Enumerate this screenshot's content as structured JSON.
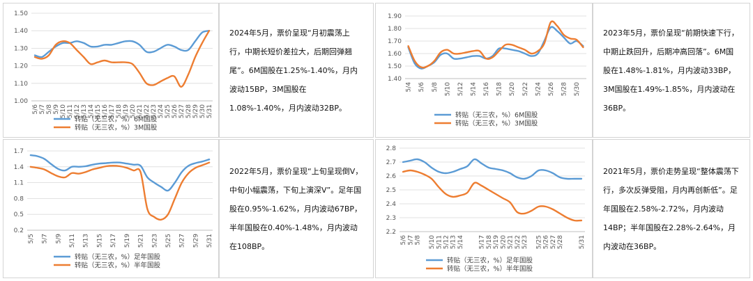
{
  "colors": {
    "blue": "#5B9BD5",
    "orange": "#ED7D31",
    "grid": "#d9d9d9"
  },
  "texts": [
    "2024年5月，票价呈现“月初震荡上行，中期长短价差拉大，后期回弹翘尾”。6M国股在1.25%-1.40%，月内波动15BP，3M国股在1.08%-1.40%，月内波动32BP。",
    "2023年5月，票价呈现“前期快速下行，中期止跌回升，后期冲高回落”。6M国股在1.48%-1.81%，月内波动33BP，3M国股在1.49%-1.85%，月内波动在36BP。",
    "2022年5月，票价呈现“上旬呈现倒V，中旬小幅震荡，下旬上演深V”。足年国股在0.95%-1.62%，月内波动67BP，半年国股在0.40%-1.48%，月内波动在108BP。",
    "2021年5月，票价走势呈现“整体震荡下行，多次反弹受阻，月内再创新低”。足年国股在2.58%-2.72%，月内波动14BP；半年国股在2.28%-2.64%，月内波动在36BP。"
  ],
  "chart_data": [
    {
      "type": "line",
      "x": [
        "5/6",
        "5/7",
        "5/8",
        "5/9",
        "5/10",
        "5/11",
        "5/12",
        "5/13",
        "5/14",
        "5/15",
        "5/16",
        "5/17",
        "5/18",
        "5/19",
        "5/20",
        "5/21",
        "5/22",
        "5/23",
        "5/24",
        "5/25",
        "5/26",
        "5/27",
        "5/28",
        "5/29",
        "5/30",
        "5/31"
      ],
      "xticks": [
        "5/6",
        "5/7",
        "5/8",
        "5/9",
        "5/10",
        "5/11",
        "5/12",
        "5/13",
        "5/14",
        "5/15",
        "5/16",
        "5/17",
        "5/18",
        "5/19",
        "5/20",
        "5/21",
        "5/22",
        "5/23",
        "5/24",
        "5/25",
        "5/26",
        "5/27",
        "5/28",
        "5/29",
        "5/30",
        "5/31"
      ],
      "ylim": [
        1.0,
        1.5
      ],
      "yticks": [
        "1.00",
        "1.10",
        "1.20",
        "1.30",
        "1.40",
        "1.50"
      ],
      "series": [
        {
          "name": "转贴（无三农，%）6M国股",
          "values": [
            1.26,
            1.25,
            1.28,
            1.31,
            1.33,
            1.33,
            1.34,
            1.33,
            1.31,
            1.31,
            1.32,
            1.32,
            1.33,
            1.34,
            1.34,
            1.32,
            1.28,
            1.28,
            1.3,
            1.32,
            1.31,
            1.29,
            1.29,
            1.34,
            1.39,
            1.4
          ]
        },
        {
          "name": "转贴（无三农，%）3M国股",
          "values": [
            1.25,
            1.24,
            1.26,
            1.32,
            1.34,
            1.33,
            1.29,
            1.25,
            1.21,
            1.22,
            1.23,
            1.22,
            1.22,
            1.22,
            1.21,
            1.16,
            1.1,
            1.09,
            1.11,
            1.13,
            1.14,
            1.08,
            1.15,
            1.25,
            1.33,
            1.4
          ]
        }
      ]
    },
    {
      "type": "line",
      "x": [
        "5/4",
        "5/5",
        "5/6",
        "5/7",
        "5/8",
        "5/9",
        "5/10",
        "5/11",
        "5/12",
        "5/13",
        "5/14",
        "5/15",
        "5/16",
        "5/17",
        "5/18",
        "5/19",
        "5/20",
        "5/21",
        "5/22",
        "5/23",
        "5/24",
        "5/25",
        "5/26",
        "5/27",
        "5/28",
        "5/29",
        "5/30",
        "5/31"
      ],
      "xticks": [
        "5/4",
        "5/6",
        "5/8",
        "5/10",
        "5/12",
        "5/14",
        "5/16",
        "5/18",
        "5/20",
        "5/22",
        "5/24",
        "5/26",
        "5/28",
        "5/30"
      ],
      "ylim": [
        1.4,
        1.9
      ],
      "yticks": [
        "1.40",
        "1.50",
        "1.60",
        "1.70",
        "1.80",
        "1.90"
      ],
      "series": [
        {
          "name": "转贴（无三农，%）6M国股",
          "values": [
            1.65,
            1.52,
            1.48,
            1.5,
            1.53,
            1.59,
            1.6,
            1.56,
            1.56,
            1.57,
            1.58,
            1.58,
            1.56,
            1.58,
            1.64,
            1.64,
            1.63,
            1.62,
            1.6,
            1.58,
            1.6,
            1.7,
            1.81,
            1.78,
            1.73,
            1.68,
            1.7,
            1.66
          ]
        },
        {
          "name": "转贴（无三农，%）3M国股",
          "values": [
            1.66,
            1.54,
            1.49,
            1.5,
            1.54,
            1.61,
            1.63,
            1.6,
            1.6,
            1.61,
            1.62,
            1.62,
            1.56,
            1.57,
            1.62,
            1.67,
            1.67,
            1.65,
            1.63,
            1.6,
            1.62,
            1.68,
            1.85,
            1.82,
            1.75,
            1.72,
            1.71,
            1.65
          ]
        }
      ]
    },
    {
      "type": "line",
      "x": [
        "5/5",
        "5/6",
        "5/7",
        "5/8",
        "5/9",
        "5/10",
        "5/11",
        "5/12",
        "5/13",
        "5/14",
        "5/15",
        "5/16",
        "5/17",
        "5/18",
        "5/19",
        "5/20",
        "5/21",
        "5/22",
        "5/23",
        "5/24",
        "5/25",
        "5/26",
        "5/27",
        "5/28",
        "5/29",
        "5/30",
        "5/31"
      ],
      "xticks": [
        "5/5",
        "5/7",
        "5/9",
        "5/11",
        "5/13",
        "5/15",
        "5/17",
        "5/19",
        "5/21",
        "5/23",
        "5/25",
        "5/27",
        "5/29",
        "5/31"
      ],
      "ylim": [
        0.2,
        1.7
      ],
      "yticks": [
        "0.2",
        "0.5",
        "0.8",
        "1.1",
        "1.4",
        "1.7"
      ],
      "series": [
        {
          "name": "转贴（无三农，%）足年国股",
          "values": [
            1.62,
            1.6,
            1.55,
            1.45,
            1.36,
            1.33,
            1.4,
            1.4,
            1.41,
            1.44,
            1.46,
            1.47,
            1.48,
            1.48,
            1.46,
            1.44,
            1.42,
            1.2,
            1.1,
            1.02,
            0.95,
            1.1,
            1.3,
            1.42,
            1.47,
            1.5,
            1.54
          ]
        },
        {
          "name": "转贴（无三农，%）半年国股",
          "values": [
            1.4,
            1.38,
            1.35,
            1.28,
            1.22,
            1.2,
            1.28,
            1.27,
            1.3,
            1.35,
            1.38,
            1.41,
            1.42,
            1.41,
            1.38,
            1.33,
            1.3,
            0.6,
            0.45,
            0.4,
            0.5,
            0.8,
            1.1,
            1.28,
            1.38,
            1.43,
            1.48
          ]
        }
      ]
    },
    {
      "type": "line",
      "x": [
        "5/6",
        "5/7",
        "5/8",
        "5/9",
        "5/10",
        "5/11",
        "5/12",
        "5/13",
        "5/14",
        "5/15",
        "5/16",
        "5/17",
        "5/18",
        "5/19",
        "5/20",
        "5/21",
        "5/22",
        "5/23",
        "5/24",
        "5/25",
        "5/26",
        "5/27",
        "5/28",
        "5/29",
        "5/30",
        "5/31"
      ],
      "xticks": [
        "5/6",
        "5/7",
        "5/8",
        "5/10",
        "5/11",
        "5/12",
        "5/13",
        "5/14",
        "5/17",
        "5/18",
        "5/19",
        "5/20",
        "5/21",
        "5/22",
        "5/23",
        "5/25",
        "5/26",
        "5/27",
        "5/28",
        "5/31"
      ],
      "ylim": [
        2.2,
        2.8
      ],
      "yticks": [
        "2.2",
        "2.3",
        "2.4",
        "2.5",
        "2.6",
        "2.7",
        "2.8"
      ],
      "series": [
        {
          "name": "转贴（无三农，%）足年国股",
          "values": [
            2.7,
            2.71,
            2.72,
            2.7,
            2.66,
            2.63,
            2.62,
            2.63,
            2.65,
            2.67,
            2.72,
            2.69,
            2.66,
            2.65,
            2.64,
            2.62,
            2.59,
            2.58,
            2.6,
            2.64,
            2.64,
            2.62,
            2.59,
            2.58,
            2.58,
            2.58
          ]
        },
        {
          "name": "转贴（无三农，%）半年国股",
          "values": [
            2.63,
            2.64,
            2.63,
            2.61,
            2.58,
            2.52,
            2.47,
            2.45,
            2.46,
            2.48,
            2.55,
            2.53,
            2.5,
            2.47,
            2.44,
            2.41,
            2.34,
            2.33,
            2.35,
            2.38,
            2.38,
            2.36,
            2.33,
            2.3,
            2.28,
            2.28
          ]
        }
      ]
    }
  ]
}
